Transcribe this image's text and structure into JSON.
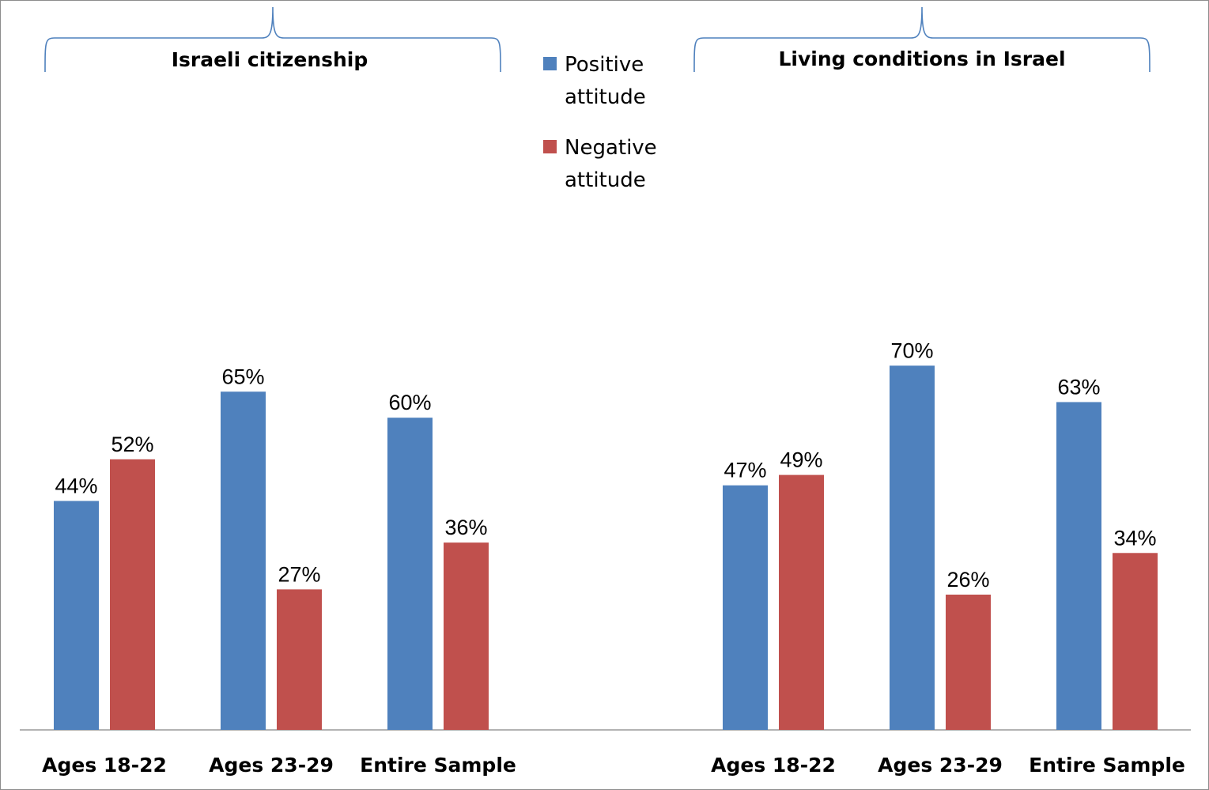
{
  "chart_data": {
    "type": "bar",
    "ylim": [
      0,
      80
    ],
    "grid": false,
    "legend_position": "top-center",
    "series": [
      {
        "name_line1": "Positive",
        "name_line2": "attitude",
        "color": "#4f81bd"
      },
      {
        "name_line1": "Negative",
        "name_line2": "attitude",
        "color": "#c0504d"
      }
    ],
    "groups": [
      {
        "title": "Israeli citizenship",
        "categories": [
          {
            "label": "Ages 18-22",
            "positive": 44,
            "negative": 52,
            "positive_label": "44%",
            "negative_label": "52%"
          },
          {
            "label": "Ages 23-29",
            "positive": 65,
            "negative": 27,
            "positive_label": "65%",
            "negative_label": "27%"
          },
          {
            "label": "Entire Sample",
            "positive": 60,
            "negative": 36,
            "positive_label": "60%",
            "negative_label": "36%"
          }
        ]
      },
      {
        "title": "Living conditions in Israel",
        "categories": [
          {
            "label": "Ages 18-22",
            "positive": 47,
            "negative": 49,
            "positive_label": "47%",
            "negative_label": "49%"
          },
          {
            "label": "Ages 23-29",
            "positive": 70,
            "negative": 26,
            "positive_label": "70%",
            "negative_label": "26%"
          },
          {
            "label": "Entire Sample",
            "positive": 63,
            "negative": 34,
            "positive_label": "63%",
            "negative_label": "34%"
          }
        ]
      }
    ]
  }
}
